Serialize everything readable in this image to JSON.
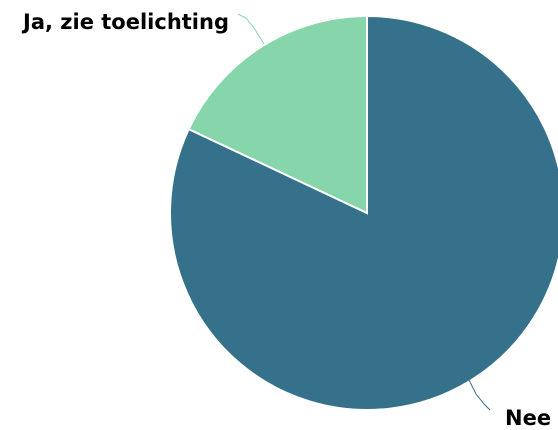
{
  "chart_data": {
    "type": "pie",
    "categories": [
      "Nee",
      "Ja, zie toelichting"
    ],
    "values": [
      82,
      18
    ],
    "colors": [
      "#36718c",
      "#86d5ab"
    ],
    "title": "",
    "legend": "none"
  }
}
